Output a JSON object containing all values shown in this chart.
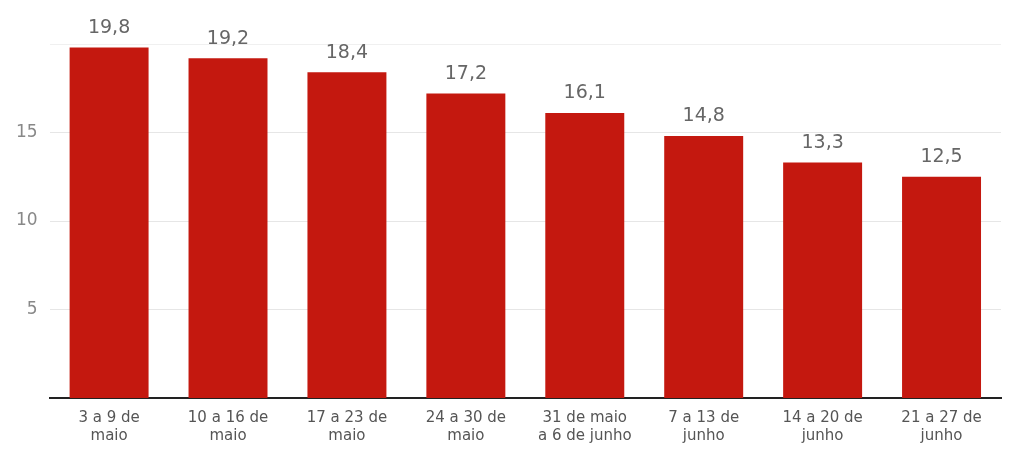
{
  "chart_data": {
    "type": "bar",
    "categories": [
      "3 a 9 de maio",
      "10 a 16 de maio",
      "17 a 23 de maio",
      "24 a 30 de maio",
      "31 de maio a 6 de junho",
      "7 a 13 de junho",
      "14 a 20 de junho",
      "21 a 27 de junho"
    ],
    "values": [
      19.8,
      19.2,
      18.4,
      17.2,
      16.1,
      14.8,
      13.3,
      12.5
    ],
    "value_labels": [
      "19,8",
      "19,2",
      "18,4",
      "17,2",
      "16,1",
      "14,8",
      "13,3",
      "12,5"
    ],
    "color": "#c4180f",
    "ylim": [
      0,
      20
    ],
    "yticks": [
      5,
      10,
      15,
      {
        "value": 20,
        "label": null
      }
    ],
    "grid": "y",
    "legend": false
  }
}
